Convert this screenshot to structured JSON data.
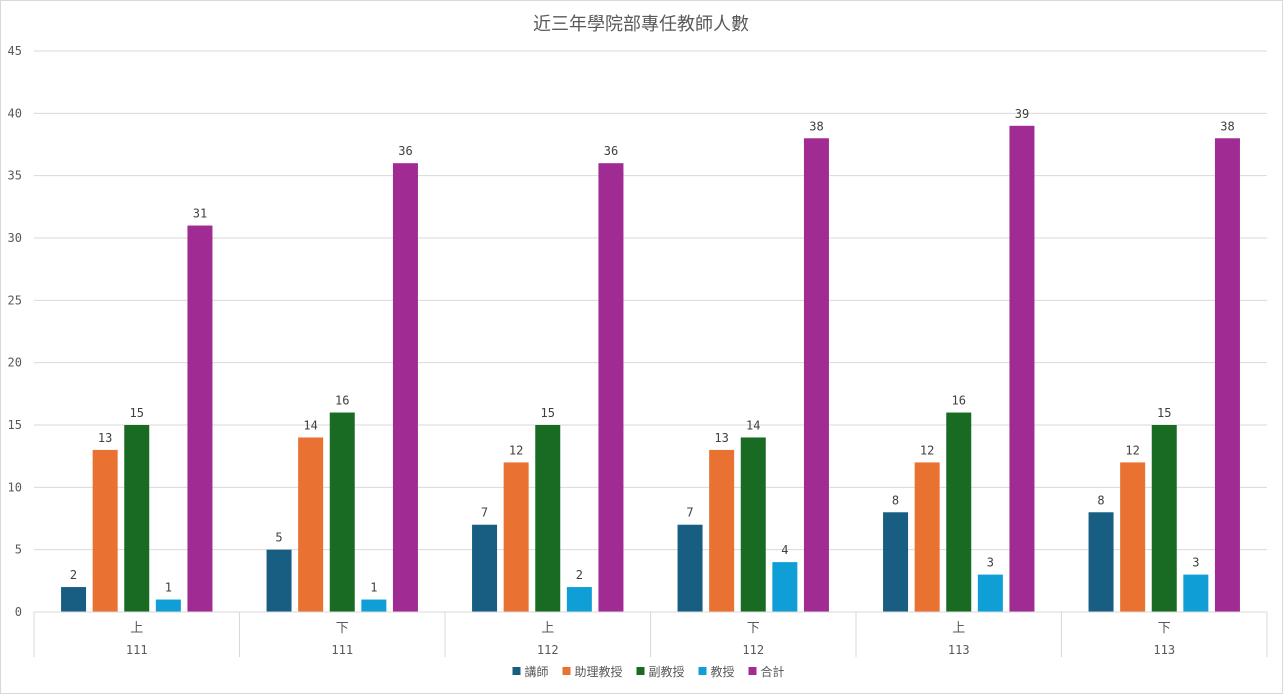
{
  "chart_data": {
    "type": "bar",
    "title": "近三年學院部專任教師人數",
    "categories": [
      {
        "semester": "上",
        "year": "111"
      },
      {
        "semester": "下",
        "year": "111"
      },
      {
        "semester": "上",
        "year": "112"
      },
      {
        "semester": "下",
        "year": "112"
      },
      {
        "semester": "上",
        "year": "113"
      },
      {
        "semester": "下",
        "year": "113"
      }
    ],
    "series": [
      {
        "name": "講師",
        "color": "#175e82",
        "values": [
          2,
          5,
          7,
          7,
          8,
          8
        ]
      },
      {
        "name": "助理教授",
        "color": "#e97132",
        "values": [
          13,
          14,
          12,
          13,
          12,
          12
        ]
      },
      {
        "name": "副教授",
        "color": "#196b24",
        "values": [
          15,
          16,
          15,
          14,
          16,
          15
        ]
      },
      {
        "name": "教授",
        "color": "#0f9ed5",
        "values": [
          1,
          1,
          2,
          4,
          3,
          3
        ]
      },
      {
        "name": "合計",
        "color": "#a02b93",
        "values": [
          31,
          36,
          36,
          38,
          39,
          38
        ]
      }
    ],
    "ylim": [
      0,
      45
    ],
    "yticks": [
      0,
      5,
      10,
      15,
      20,
      25,
      30,
      35,
      40,
      45
    ],
    "grid": true,
    "legend_position": "bottom",
    "data_labels": true
  }
}
